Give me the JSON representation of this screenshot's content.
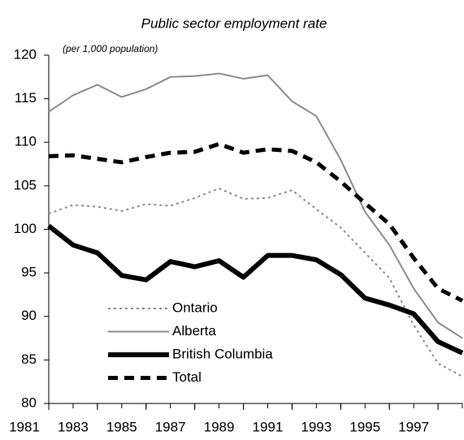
{
  "chart_data": {
    "type": "line",
    "title": "Public sector employment rate",
    "subtitle": "(per 1,000 population)",
    "x": [
      1981,
      1982,
      1983,
      1984,
      1985,
      1986,
      1987,
      1988,
      1989,
      1990,
      1991,
      1992,
      1993,
      1994,
      1995,
      1996,
      1997,
      1998
    ],
    "series": [
      {
        "name": "Ontario",
        "color": "#8c8c8c",
        "style": "dotted",
        "width": 2,
        "values": [
          101.8,
          102.8,
          102.6,
          102.1,
          102.9,
          102.7,
          103.6,
          104.7,
          103.5,
          103.6,
          104.5,
          102.3,
          100.2,
          97.3,
          94.4,
          89,
          84.6,
          83.1
        ]
      },
      {
        "name": "Alberta",
        "color": "#8c8c8c",
        "style": "solid",
        "width": 2,
        "values": [
          113.5,
          115.4,
          116.6,
          115.2,
          116.1,
          117.5,
          117.6,
          117.9,
          117.3,
          117.7,
          114.7,
          113,
          108,
          102,
          98.2,
          93.2,
          89.3,
          87.5
        ]
      },
      {
        "name": "British Columbia",
        "color": "#000000",
        "style": "solid",
        "width": 6,
        "values": [
          100.4,
          98.2,
          97.3,
          94.7,
          94.2,
          96.3,
          95.7,
          96.4,
          94.5,
          97,
          97,
          96.5,
          94.8,
          92.1,
          91.3,
          90.3,
          87.1,
          85.8
        ]
      },
      {
        "name": "Total",
        "color": "#000000",
        "style": "dashed",
        "width": 5,
        "values": [
          108.4,
          108.5,
          108.1,
          107.7,
          108.3,
          108.8,
          108.9,
          109.8,
          108.8,
          109.2,
          109,
          107.7,
          105.5,
          103,
          100.6,
          96.7,
          93.2,
          91.8
        ]
      }
    ],
    "xlim": [
      1981,
      1998
    ],
    "xticks": [
      1981,
      1983,
      1985,
      1987,
      1989,
      1991,
      1993,
      1995,
      1997
    ],
    "ylim": [
      80,
      120
    ],
    "yticks": [
      80,
      85,
      90,
      95,
      100,
      105,
      110,
      115,
      120
    ],
    "grid": false,
    "legend": "lower-left"
  }
}
